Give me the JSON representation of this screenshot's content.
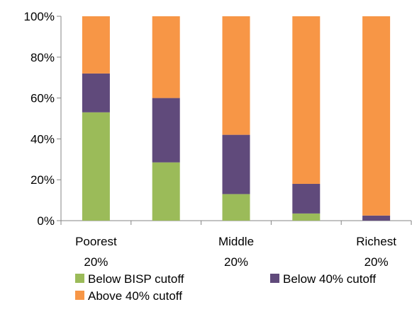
{
  "chart_data": {
    "type": "bar",
    "stacked": true,
    "percent_stacked": true,
    "title": "",
    "xlabel": "",
    "ylabel": "",
    "ylim": [
      0,
      100
    ],
    "y_ticks": [
      0,
      20,
      40,
      60,
      80,
      100
    ],
    "y_tick_labels": [
      "0%",
      "20%",
      "40%",
      "60%",
      "80%",
      "100%"
    ],
    "grid": false,
    "legend_position": "bottom",
    "categories": [
      "Poorest 20%",
      "",
      "Middle 20%",
      "",
      "Richest 20%"
    ],
    "category_label_lines": [
      [
        "Poorest",
        "20%"
      ],
      [],
      [
        "Middle",
        "20%"
      ],
      [],
      [
        "Richest",
        "20%"
      ]
    ],
    "series": [
      {
        "name": "Below BISP cutoff",
        "color": "#9bbb59",
        "values": [
          53,
          28.5,
          13,
          3.5,
          0
        ]
      },
      {
        "name": "Below 40% cutoff",
        "color": "#604a7b",
        "values": [
          19,
          31.5,
          29,
          14.5,
          2.5
        ]
      },
      {
        "name": "Above 40% cutoff",
        "color": "#f79646",
        "values": [
          28,
          40,
          58,
          82,
          97.5
        ]
      }
    ]
  }
}
